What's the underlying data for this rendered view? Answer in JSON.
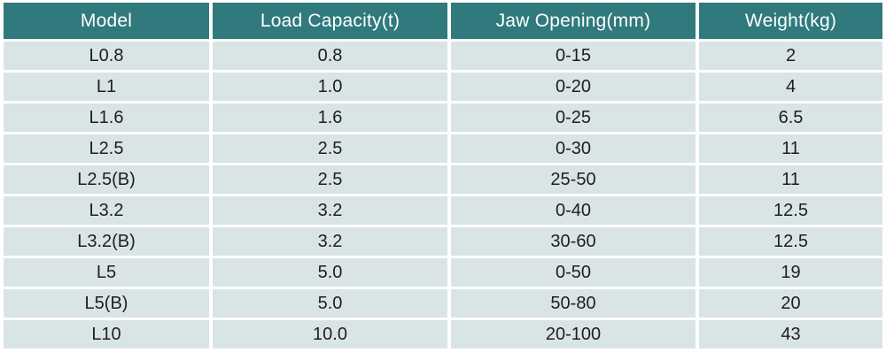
{
  "chart_data": {
    "type": "table",
    "columns": [
      "Model",
      "Load Capacity(t)",
      "Jaw Opening(mm)",
      "Weight(kg)"
    ],
    "rows": [
      [
        "L0.8",
        "0.8",
        "0-15",
        "2"
      ],
      [
        "L1",
        "1.0",
        "0-20",
        "4"
      ],
      [
        "L1.6",
        "1.6",
        "0-25",
        "6.5"
      ],
      [
        "L2.5",
        "2.5",
        "0-30",
        "11"
      ],
      [
        "L2.5(B)",
        "2.5",
        "25-50",
        "11"
      ],
      [
        "L3.2",
        "3.2",
        "0-40",
        "12.5"
      ],
      [
        "L3.2(B)",
        "3.2",
        "30-60",
        "12.5"
      ],
      [
        "L5",
        "5.0",
        "0-50",
        "19"
      ],
      [
        "L5(B)",
        "5.0",
        "50-80",
        "20"
      ],
      [
        "L10",
        "10.0",
        "20-100",
        "43"
      ]
    ]
  },
  "colors": {
    "header_bg": "#30797c",
    "header_text": "#ffffff",
    "row_bg": "#d9e5e4",
    "row_text": "#1e1e1e",
    "page_bg": "#ffffff"
  }
}
